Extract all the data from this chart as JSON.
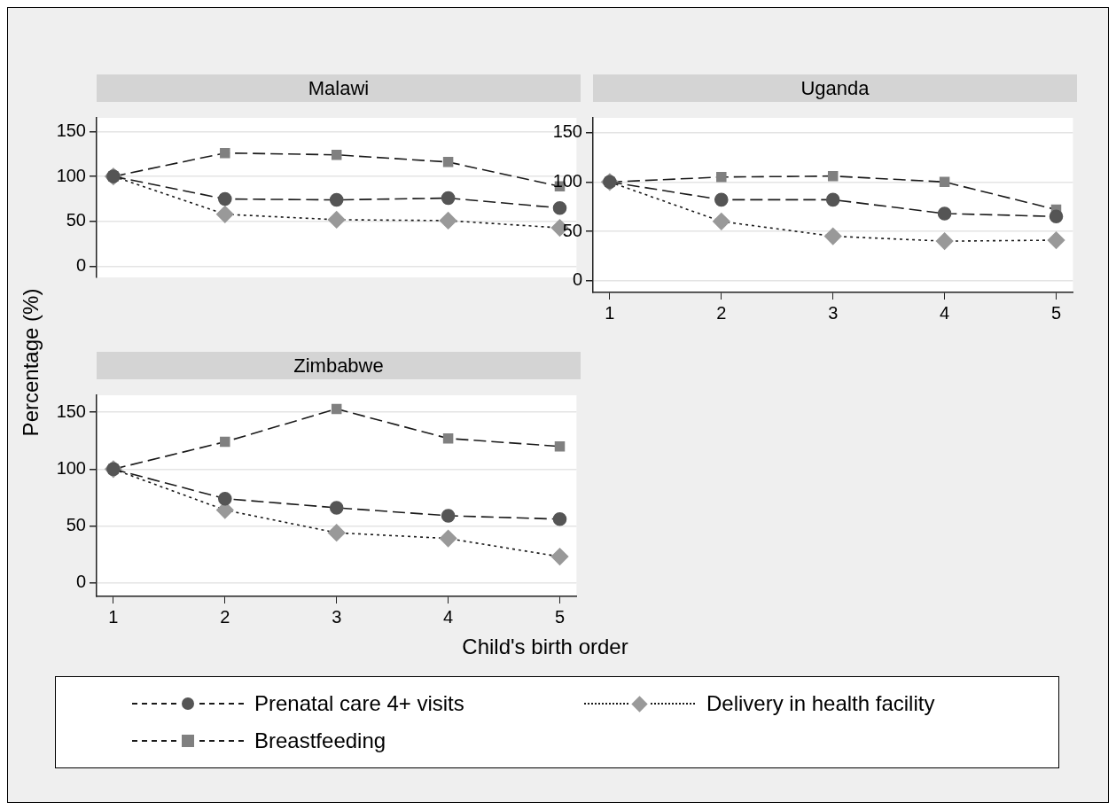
{
  "chart_data": [
    {
      "type": "line",
      "title": "Malawi",
      "ylabel": "Percentage (%)",
      "xlabel": "Child's birth order",
      "legend": "bottom",
      "x": [
        1,
        2,
        3,
        4,
        5
      ],
      "xlim": [
        0.85,
        5.15
      ],
      "xticks": [
        1,
        2,
        3,
        4,
        5
      ],
      "ylim": [
        -12,
        165
      ],
      "yticks": [
        0,
        50,
        100,
        150
      ],
      "grid": "y",
      "tick_labels": "y",
      "series": [
        {
          "name": "Prenatal care 4+ visits",
          "color": "#555555",
          "marker": "circle",
          "line_style": "dashed",
          "values": [
            100,
            75,
            74,
            76,
            65
          ]
        },
        {
          "name": "Delivery in health facility",
          "color": "#999999",
          "marker": "diamond",
          "line_style": "dotted",
          "values": [
            100,
            58,
            52,
            51,
            43
          ]
        },
        {
          "name": "Breastfeeding",
          "color": "#808080",
          "marker": "square",
          "line_style": "dashed",
          "values": [
            100,
            126,
            124,
            116,
            89
          ]
        }
      ]
    },
    {
      "type": "line",
      "title": "Uganda",
      "x": [
        1,
        2,
        3,
        4,
        5
      ],
      "xlim": [
        0.85,
        5.15
      ],
      "xticks": [
        1,
        2,
        3,
        4,
        5
      ],
      "ylim": [
        -12,
        165
      ],
      "yticks": [
        0,
        50,
        100,
        150
      ],
      "grid": "y",
      "series": [
        {
          "color": "#555555",
          "marker": "circle",
          "line_style": "dashed",
          "values": [
            100,
            82,
            82,
            68,
            65
          ]
        },
        {
          "color": "#999999",
          "marker": "diamond",
          "line_style": "dotted",
          "values": [
            100,
            60,
            45,
            40,
            41
          ]
        },
        {
          "color": "#808080",
          "marker": "square",
          "line_style": "dashed",
          "values": [
            100,
            105,
            106,
            100,
            72
          ]
        }
      ]
    },
    {
      "type": "line",
      "title": "Zimbabwe",
      "x": [
        1,
        2,
        3,
        4,
        5
      ],
      "xlim": [
        0.85,
        5.15
      ],
      "xticks": [
        1,
        2,
        3,
        4,
        5
      ],
      "ylim": [
        -12,
        165
      ],
      "yticks": [
        0,
        50,
        100,
        150
      ],
      "grid": "y",
      "series": [
        {
          "color": "#555555",
          "marker": "circle",
          "line_style": "dashed",
          "values": [
            100,
            74,
            66,
            59,
            56
          ]
        },
        {
          "color": "#999999",
          "marker": "diamond",
          "line_style": "dotted",
          "values": [
            100,
            64,
            44,
            39,
            23
          ]
        },
        {
          "color": "#808080",
          "marker": "square",
          "line_style": "dashed",
          "values": [
            100,
            124,
            153,
            127,
            120
          ]
        }
      ]
    }
  ]
}
